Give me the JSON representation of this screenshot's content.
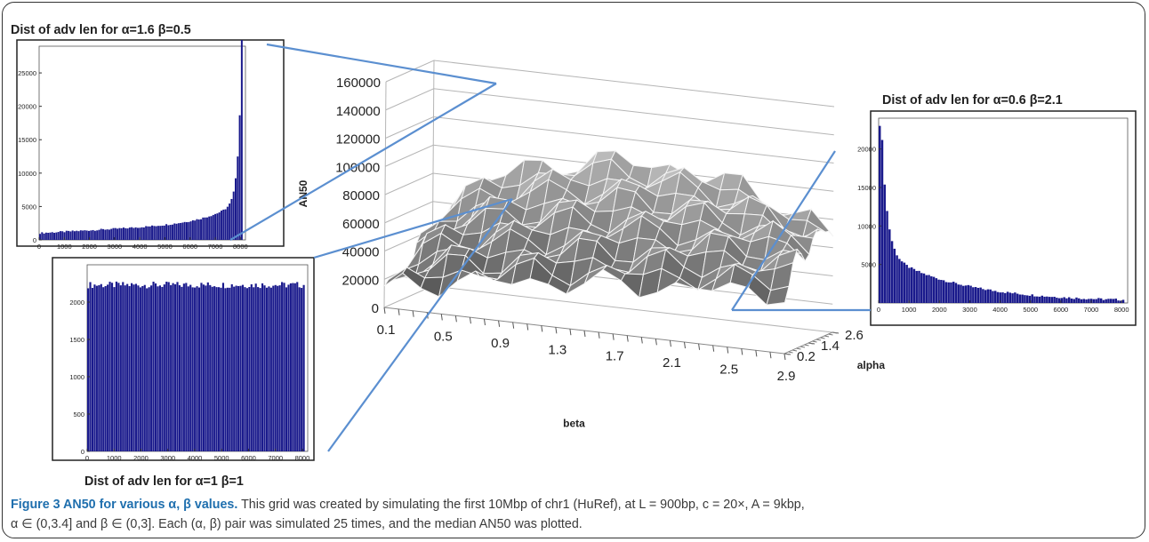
{
  "chart_data": [
    {
      "type": "surface3d",
      "zlabel": "AN50",
      "xlabel": "beta",
      "ylabel": "alpha",
      "z_ticks": [
        "0",
        "20000",
        "40000",
        "60000",
        "80000",
        "100000",
        "120000",
        "140000",
        "160000"
      ],
      "x_ticks": [
        "0.1",
        "0.5",
        "0.9",
        "1.3",
        "1.7",
        "2.1",
        "2.5",
        "2.9"
      ],
      "y_ticks": [
        "0.2",
        "1.4",
        "2.6"
      ],
      "zlim": [
        0,
        160000
      ]
    },
    {
      "type": "bar",
      "title": "Dist of adv len for α=1.6 β=0.5",
      "x_ticks": [
        "0",
        "1000",
        "2000",
        "3000",
        "4000",
        "5000",
        "6000",
        "7000",
        "8000"
      ],
      "y_ticks": [
        "0",
        "5000",
        "10000",
        "15000",
        "20000",
        "25000"
      ],
      "xlim": [
        0,
        8200
      ],
      "ylim": [
        0,
        29000
      ],
      "shape": "rising",
      "color": "#1a1a8c"
    },
    {
      "type": "bar",
      "title": "Dist of adv len for α=1 β=1",
      "x_ticks": [
        "0",
        "1000",
        "2000",
        "3000",
        "4000",
        "5000",
        "6000",
        "7000",
        "8000"
      ],
      "y_ticks": [
        "0",
        "500",
        "1000",
        "1500",
        "2000"
      ],
      "xlim": [
        0,
        8200
      ],
      "ylim": [
        0,
        2500
      ],
      "shape": "flat",
      "color": "#1a1a8c"
    },
    {
      "type": "bar",
      "title": "Dist of adv len for α=0.6 β=2.1",
      "x_ticks": [
        "0",
        "1000",
        "2000",
        "3000",
        "4000",
        "5000",
        "6000",
        "7000",
        "8000"
      ],
      "y_ticks": [
        "5000",
        "10000",
        "15000",
        "20000"
      ],
      "xlim": [
        0,
        8200
      ],
      "ylim": [
        0,
        24000
      ],
      "shape": "decaying",
      "color": "#1a1a8c"
    }
  ],
  "caption": {
    "title": "Figure 3 AN50 for various α, β values.",
    "line1": "This grid was created by simulating the first 10Mbp of chr1 (HuRef), at L = 900bp, c = 20×, A = 9kbp,",
    "line2": "α ∈ (0,3.4] and β ∈ (0,3]. Each (α, β) pair was simulated 25 times, and the median AN50 was plotted."
  },
  "colors": {
    "connector": "#5b8fd0",
    "bars": "#1a1a8c",
    "caption_title": "#1f6fae"
  }
}
